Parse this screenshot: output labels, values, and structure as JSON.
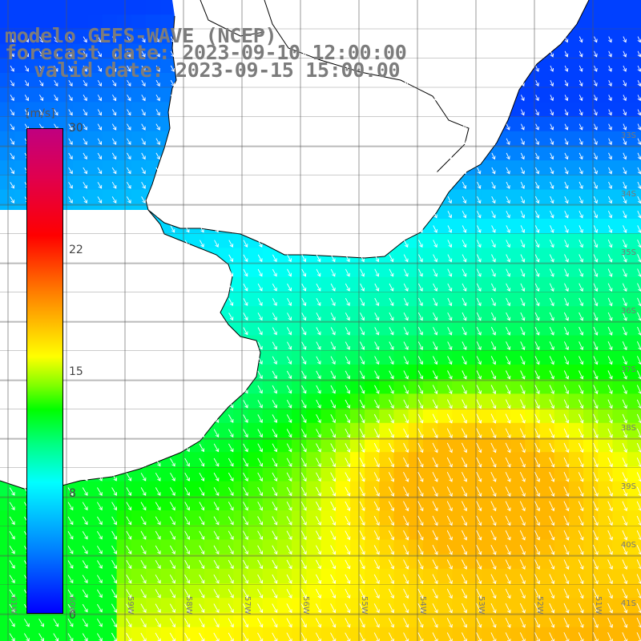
{
  "header": {
    "line1": "modelo GEFS-WAVE (NCEP)",
    "line2": "forecast date: 2023-09-10 12:00:00",
    "line3": "valid date: 2023-09-15 15:00:00"
  },
  "colorbar": {
    "unit": "[m/s]",
    "ticks": [
      "30",
      "22",
      "15",
      "8",
      "0"
    ],
    "tick_values": [
      30,
      22,
      15,
      8,
      0
    ],
    "colors": [
      "#0000ff",
      "#0080ff",
      "#00ffff",
      "#00ff80",
      "#00ff00",
      "#80ff00",
      "#ffff00",
      "#ff8000",
      "#ff0000",
      "#c00080"
    ]
  },
  "axes": {
    "longitudes": [
      "61W",
      "60W",
      "59W",
      "58W",
      "57W",
      "56W",
      "55W",
      "54W",
      "53W",
      "52W",
      "51W"
    ],
    "latitudes": [
      "33S",
      "34S",
      "35S",
      "36S",
      "37S",
      "38S",
      "39S",
      "40S",
      "41S"
    ]
  },
  "wind_field": {
    "variable": "wind speed and direction",
    "typical_direction": "from NNW toward SSE (arrows pointing south-southeast)",
    "regions": [
      {
        "area": "northeast coast near 32S-33S",
        "speed_range": [
          2,
          6
        ]
      },
      {
        "area": "off Uruguay coast 34S-35S",
        "speed_range": [
          6,
          9
        ]
      },
      {
        "area": "Rio de la Plata outer / 36S",
        "speed_range": [
          9,
          12
        ]
      },
      {
        "area": "offshore 37S-39S 54W-52W",
        "speed_range": [
          15,
          18
        ]
      },
      {
        "area": "southern area 40S-41S",
        "speed_range": [
          13,
          16
        ]
      }
    ]
  }
}
